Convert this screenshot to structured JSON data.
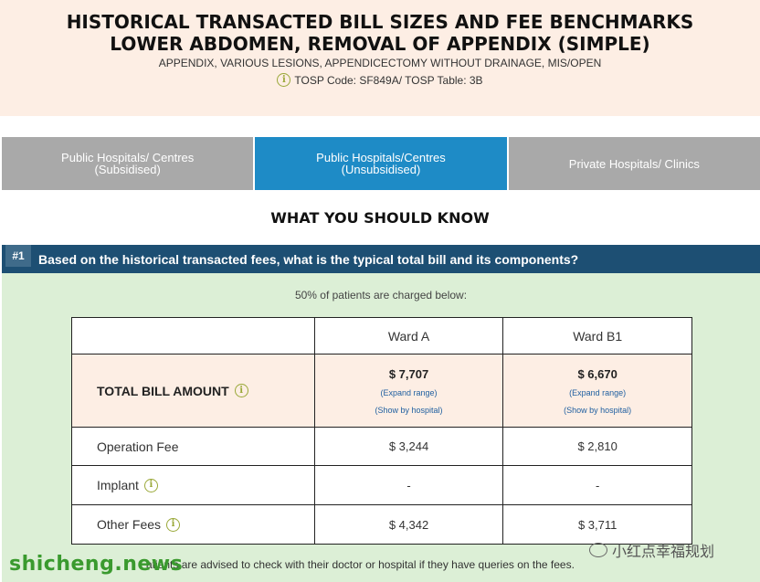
{
  "header": {
    "title_line1": "HISTORICAL TRANSACTED BILL SIZES AND FEE BENCHMARKS",
    "title_line2": "LOWER ABDOMEN, REMOVAL OF APPENDIX (SIMPLE)",
    "subtitle": "APPENDIX, VARIOUS LESIONS, APPENDICECTOMY WITHOUT DRAINAGE, MIS/OPEN",
    "tosp": "TOSP Code: SF849A/ TOSP Table: 3B"
  },
  "tabs": [
    {
      "line1": "Public Hospitals/ Centres",
      "line2": "(Subsidised)"
    },
    {
      "line1": "Public Hospitals/Centres",
      "line2": "(Unsubsidised)"
    },
    {
      "line1": "Private Hospitals/ Clinics",
      "line2": ""
    }
  ],
  "section_title": "WHAT YOU SHOULD KNOW",
  "question": {
    "number": "#1",
    "text": "Based on the historical transacted fees, what is the typical total bill and its components?"
  },
  "percentile_note": "50% of patients are charged below:",
  "table": {
    "columns": [
      "",
      "Ward A",
      "Ward B1"
    ],
    "total": {
      "label": "TOTAL BILL AMOUNT",
      "ward_a": "$ 7,707",
      "ward_b1": "$ 6,670",
      "expand": "(Expand range)",
      "show": "(Show by hospital)"
    },
    "rows": [
      {
        "label": "Operation Fee",
        "ward_a": "$ 3,244",
        "ward_b1": "$ 2,810"
      },
      {
        "label": "Implant",
        "ward_a": "-",
        "ward_b1": "-"
      },
      {
        "label": "Other Fees",
        "ward_a": "$ 4,342",
        "ward_b1": "$ 3,711"
      }
    ]
  },
  "footer_note": "atients are advised to check with their doctor or hospital if they have queries on the fees.",
  "watermark_left": "shicheng.news",
  "watermark_right": "小红点幸福规划",
  "info_glyph": "i"
}
